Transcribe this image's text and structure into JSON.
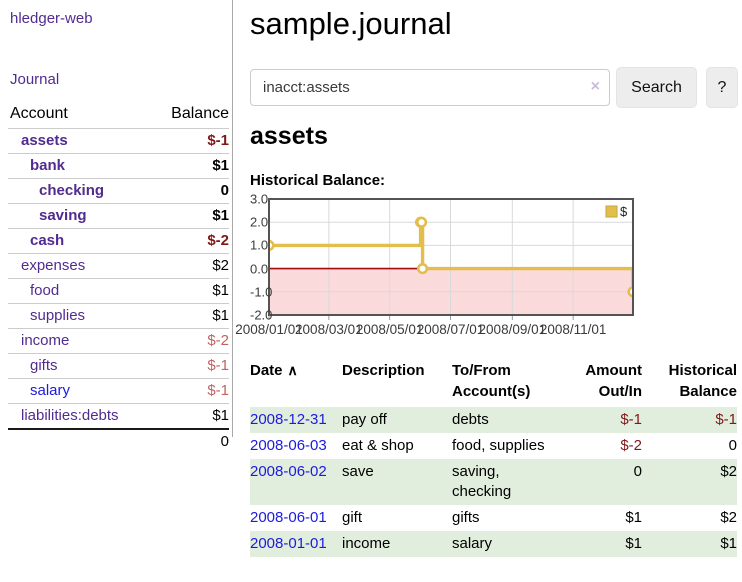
{
  "app": {
    "title": "hledger-web",
    "nav_journal": "Journal"
  },
  "sidebar": {
    "header": {
      "account": "Account",
      "balance": "Balance"
    },
    "accounts": [
      {
        "name": "assets",
        "level": 1,
        "bold": true,
        "link": "purple",
        "balance": "$-1",
        "negative": "dark"
      },
      {
        "name": "bank",
        "level": 2,
        "bold": true,
        "link": "purple",
        "balance": "$1",
        "negative": null
      },
      {
        "name": "checking",
        "level": 3,
        "bold": true,
        "link": "purple",
        "balance": "0",
        "negative": null
      },
      {
        "name": "saving",
        "level": 3,
        "bold": true,
        "link": "purple",
        "balance": "$1",
        "negative": null
      },
      {
        "name": "cash",
        "level": 2,
        "bold": true,
        "link": "purple",
        "balance": "$-2",
        "negative": "dark"
      },
      {
        "name": "expenses",
        "level": 1,
        "bold": false,
        "link": "purple",
        "balance": "$2",
        "negative": null
      },
      {
        "name": "food",
        "level": 2,
        "bold": false,
        "link": "purple",
        "balance": "$1",
        "negative": null
      },
      {
        "name": "supplies",
        "level": 2,
        "bold": false,
        "link": "purple",
        "balance": "$1",
        "negative": null
      },
      {
        "name": "income",
        "level": 1,
        "bold": false,
        "link": "purple",
        "balance": "$-2",
        "negative": "light"
      },
      {
        "name": "gifts",
        "level": 2,
        "bold": false,
        "link": "purple",
        "balance": "$-1",
        "negative": "light"
      },
      {
        "name": "salary",
        "level": 2,
        "bold": false,
        "link": "blue",
        "balance": "$-1",
        "negative": "light"
      },
      {
        "name": "liabilities:debts",
        "level": 1,
        "bold": false,
        "link": "purple",
        "balance": "$1",
        "negative": null
      }
    ],
    "total": "0"
  },
  "main": {
    "title": "sample.journal",
    "search": {
      "value": "inacct:assets",
      "clear": "×",
      "button": "Search",
      "help": "?"
    },
    "account_heading": "assets",
    "chart_label": "Historical Balance:"
  },
  "chart_data": {
    "type": "line",
    "title": "Historical Balance:",
    "step": true,
    "series": [
      {
        "name": "$",
        "points": [
          {
            "date": "2008-01-01",
            "value": 1
          },
          {
            "date": "2008-06-01",
            "value": 2
          },
          {
            "date": "2008-06-02",
            "value": 2
          },
          {
            "date": "2008-06-03",
            "value": 0
          },
          {
            "date": "2008-12-31",
            "value": -1
          }
        ]
      }
    ],
    "xlim": [
      "2008-01-01",
      "2008-12-31"
    ],
    "ylim": [
      -2,
      3
    ],
    "x_ticks": [
      "2008/01/01",
      "2008/03/01",
      "2008/05/01",
      "2008/07/01",
      "2008/09/01",
      "2008/11/01"
    ],
    "y_ticks": [
      "3.0",
      "2.0",
      "1.0",
      "0.0",
      "-1.0",
      "-2.0"
    ],
    "legend": {
      "label": "$",
      "position": "top-right"
    },
    "grid": true,
    "zero_line": true,
    "negative_region_shaded": true,
    "colors": {
      "line": "#e4be4c",
      "marker_fill": "#ffffff",
      "negative_fill": "#fadada",
      "zero_line": "#a40b0b",
      "grid": "#d9d9d9",
      "border": "#545454",
      "legend_swatch_border": "#c9a63d"
    }
  },
  "register": {
    "sort_arrow": "∧",
    "columns": [
      {
        "lines": [
          "Date"
        ],
        "align": "left",
        "sort": "asc"
      },
      {
        "lines": [
          "Description"
        ],
        "align": "left"
      },
      {
        "lines": [
          "To/From",
          "Account(s)"
        ],
        "align": "left"
      },
      {
        "lines": [
          "Amount",
          "Out/In"
        ],
        "align": "right"
      },
      {
        "lines": [
          "Historical",
          "Balance"
        ],
        "align": "right"
      }
    ],
    "rows": [
      {
        "date": "2008-12-31",
        "description": "pay off",
        "accounts": "debts",
        "amount": "$-1",
        "amount_negative": true,
        "balance": "$-1",
        "balance_negative": true
      },
      {
        "date": "2008-06-03",
        "description": "eat & shop",
        "accounts": "food, supplies",
        "amount": "$-2",
        "amount_negative": true,
        "balance": "0",
        "balance_negative": false
      },
      {
        "date": "2008-06-02",
        "description": "save",
        "accounts": "saving, checking",
        "amount": "0",
        "amount_negative": false,
        "balance": "$2",
        "balance_negative": false
      },
      {
        "date": "2008-06-01",
        "description": "gift",
        "accounts": "gifts",
        "amount": "$1",
        "amount_negative": false,
        "balance": "$2",
        "balance_negative": false
      },
      {
        "date": "2008-01-01",
        "description": "income",
        "accounts": "salary",
        "amount": "$1",
        "amount_negative": false,
        "balance": "$1",
        "balance_negative": false
      }
    ]
  },
  "colors": {
    "link_purple": "#522b90",
    "link_blue": "#1d1ae0",
    "negative_dark": "#801818",
    "negative_light": "#bf6363",
    "row_green": "#e1eedd"
  }
}
